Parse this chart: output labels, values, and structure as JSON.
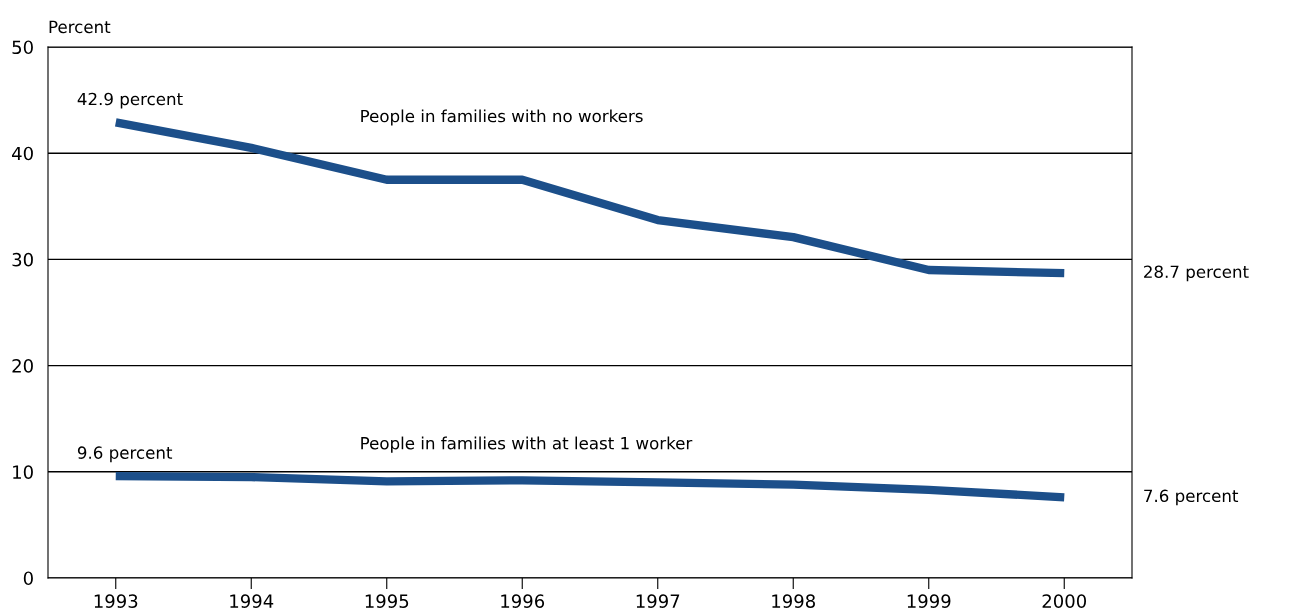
{
  "chart_data": {
    "type": "line",
    "ylabel": "Percent",
    "x": [
      1993,
      1994,
      1995,
      1996,
      1997,
      1998,
      1999,
      2000
    ],
    "series": [
      {
        "name": "People in families with no workers",
        "color": "#1c4f8a",
        "values": [
          42.9,
          40.5,
          37.5,
          37.5,
          33.7,
          32.1,
          29.0,
          28.7
        ]
      },
      {
        "name": "People in families with at least 1 worker",
        "color": "#1c4f8a",
        "values": [
          9.6,
          9.5,
          9.1,
          9.2,
          9.0,
          8.8,
          8.3,
          7.6
        ]
      }
    ],
    "annotations": [
      "42.9 percent",
      "28.7 percent",
      "9.6 percent",
      "7.6 percent"
    ],
    "xlim": [
      1992.5,
      2000.5
    ],
    "xticks": [
      1993,
      1994,
      1995,
      1996,
      1997,
      1998,
      1999,
      2000
    ],
    "ylim": [
      0,
      50
    ],
    "yticks": [
      0,
      10,
      20,
      30,
      40,
      50
    ],
    "grid": "y",
    "legend": false,
    "marker": "none",
    "line_style": "solid"
  }
}
